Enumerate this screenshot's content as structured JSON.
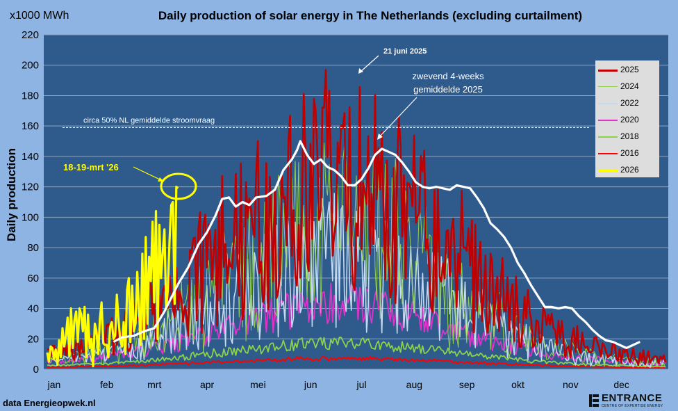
{
  "chart_data": {
    "type": "line",
    "title": "Daily production of solar energy in The Netherlands  (excluding curtailment)",
    "unit_label": "x1000 MWh",
    "ylabel": "Daily production",
    "xlabel": "",
    "ylim": [
      0,
      220
    ],
    "yticks": [
      0,
      20,
      40,
      60,
      80,
      100,
      120,
      140,
      160,
      180,
      200,
      220
    ],
    "grid": true,
    "months": [
      "jan",
      "feb",
      "mrt",
      "apr",
      "mei",
      "jun",
      "jul",
      "aug",
      "sep",
      "okt",
      "nov",
      "dec"
    ],
    "x_unit": "day of year",
    "xlim": [
      1,
      365
    ],
    "reference_line": {
      "y": 159,
      "label": "circa 50% NL gemiddelde stroomvraag"
    },
    "annotations": [
      {
        "text": "21 juni 2025",
        "x": 172,
        "y": 193
      },
      {
        "text": "zwevend 4-weeks gemiddelde 2025",
        "line1": "zwevend 4-weeks",
        "line2": "gemiddelde 2025",
        "x": 200,
        "y": 151
      },
      {
        "text": "18-19-mrt '26",
        "x": 78,
        "y": 119
      }
    ],
    "legend_position": "top-right",
    "series": [
      {
        "name": "2025",
        "color": "#C00000",
        "width": 2.6,
        "peak": 190,
        "base": 7,
        "noise": 0.85,
        "spread": 1.1,
        "seed": 11
      },
      {
        "name": "2024",
        "color": "#92D050",
        "width": 1.0,
        "peak": 150,
        "base": 6,
        "noise": 0.95,
        "spread": 1.0,
        "seed": 23
      },
      {
        "name": "2022",
        "color": "#C5D9F1",
        "width": 1.6,
        "peak": 118,
        "base": 5,
        "noise": 0.9,
        "spread": 1.0,
        "seed": 37
      },
      {
        "name": "2020",
        "color": "#E033CC",
        "width": 1.8,
        "peak": 55,
        "base": 5,
        "noise": 0.55,
        "spread": 1.05,
        "seed": 41
      },
      {
        "name": "2018",
        "color": "#8BD24A",
        "width": 1.8,
        "peak": 21,
        "base": 2,
        "noise": 0.45,
        "spread": 1.1,
        "seed": 53
      },
      {
        "name": "2016",
        "color": "#FF0000",
        "width": 2.0,
        "peak": 8,
        "base": 1,
        "noise": 0.35,
        "spread": 1.2,
        "seed": 67
      },
      {
        "name": "2026",
        "color": "#FFFF00",
        "width": 3.2,
        "values": [
          11,
          5,
          15,
          14,
          7,
          13,
          3,
          19,
          8,
          27,
          15,
          22,
          34,
          9,
          40,
          14,
          32,
          38,
          18,
          40,
          36,
          25,
          41,
          8,
          36,
          14,
          20,
          2,
          30,
          25,
          10,
          33,
          44,
          17,
          16,
          16,
          8,
          28,
          31,
          20,
          22,
          49,
          32,
          19,
          15,
          31,
          10,
          52,
          60,
          18,
          55,
          25,
          30,
          64,
          40,
          16,
          76,
          20,
          87,
          30,
          74,
          58,
          97,
          44,
          104,
          20,
          95,
          60,
          77,
          92,
          40,
          52,
          84,
          108,
          110,
          43,
          120,
          119
        ],
        "start_day": 1
      }
    ],
    "moving_average_2025": {
      "name": "zwevend 4-weeks gemiddelde 2025",
      "color": "#FFFFFF",
      "points": [
        [
          40,
          18
        ],
        [
          45,
          21
        ],
        [
          52,
          22
        ],
        [
          58,
          25
        ],
        [
          64,
          27
        ],
        [
          70,
          38
        ],
        [
          78,
          56
        ],
        [
          84,
          67
        ],
        [
          90,
          82
        ],
        [
          95,
          90
        ],
        [
          100,
          101
        ],
        [
          104,
          112
        ],
        [
          108,
          113
        ],
        [
          112,
          107
        ],
        [
          116,
          110
        ],
        [
          120,
          108
        ],
        [
          124,
          113
        ],
        [
          130,
          114
        ],
        [
          135,
          118
        ],
        [
          140,
          131
        ],
        [
          145,
          138
        ],
        [
          148,
          144
        ],
        [
          150,
          150
        ],
        [
          154,
          141
        ],
        [
          158,
          135
        ],
        [
          162,
          138
        ],
        [
          166,
          133
        ],
        [
          170,
          131
        ],
        [
          174,
          127
        ],
        [
          178,
          121
        ],
        [
          182,
          121
        ],
        [
          186,
          125
        ],
        [
          190,
          132
        ],
        [
          194,
          141
        ],
        [
          198,
          145
        ],
        [
          202,
          143
        ],
        [
          206,
          141
        ],
        [
          210,
          136
        ],
        [
          214,
          130
        ],
        [
          218,
          123
        ],
        [
          222,
          120
        ],
        [
          226,
          119
        ],
        [
          230,
          120
        ],
        [
          234,
          119
        ],
        [
          238,
          118
        ],
        [
          242,
          121
        ],
        [
          246,
          120
        ],
        [
          250,
          119
        ],
        [
          254,
          113
        ],
        [
          258,
          106
        ],
        [
          262,
          96
        ],
        [
          266,
          92
        ],
        [
          270,
          87
        ],
        [
          274,
          80
        ],
        [
          278,
          70
        ],
        [
          282,
          63
        ],
        [
          286,
          55
        ],
        [
          290,
          48
        ],
        [
          294,
          41
        ],
        [
          298,
          41
        ],
        [
          302,
          40
        ],
        [
          306,
          41
        ],
        [
          310,
          40
        ],
        [
          314,
          35
        ],
        [
          318,
          31
        ],
        [
          322,
          26
        ],
        [
          326,
          22
        ],
        [
          330,
          19
        ],
        [
          334,
          18
        ],
        [
          338,
          16
        ],
        [
          342,
          14
        ],
        [
          346,
          16
        ],
        [
          350,
          18
        ]
      ]
    }
  },
  "header": {
    "unit_label": "x1000 MWh"
  },
  "footer": {
    "source": "data Energieopwek.nl",
    "logo_text": "ENTRANCE",
    "logo_sub": "CENTRE OF EXPERTISE ENERGY"
  }
}
